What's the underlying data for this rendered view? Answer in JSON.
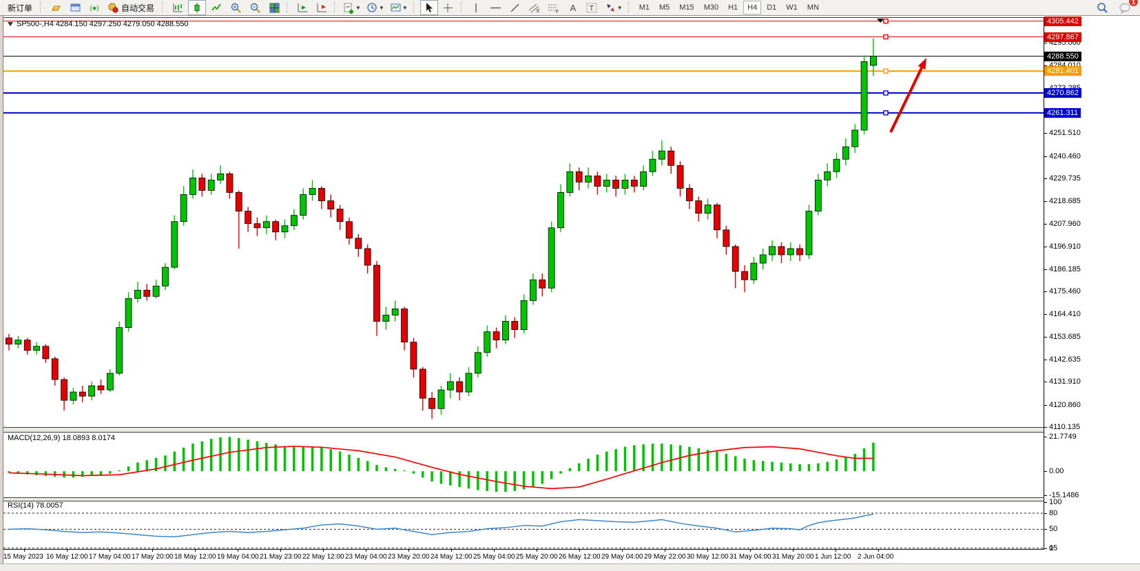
{
  "toolbar": {
    "new_order_label": "新订单",
    "auto_trading_label": "自动交易",
    "timeframes": [
      "M1",
      "M5",
      "M15",
      "M30",
      "H1",
      "H4",
      "D1",
      "W1",
      "MN"
    ],
    "active_timeframe": "H4",
    "notification_count": "1",
    "icons": [
      "gold-ingot-icon",
      "market-window-icon",
      "signal-icon",
      "auto-trading-icon",
      "bar-chart-icon",
      "candlestick-chart-icon",
      "line-chart-icon",
      "zoom-in-icon",
      "zoom-out-icon",
      "tile-windows-icon",
      "auto-scroll-icon",
      "chart-shift-icon",
      "indicators-icon",
      "period-icon",
      "template-icon",
      "cursor-icon",
      "crosshair-icon",
      "vertical-line-icon",
      "horizontal-line-icon",
      "trendline-icon",
      "equidistant-channel-icon",
      "fibonacci-icon",
      "text-icon",
      "text-label-icon",
      "arrows-icon",
      "search-icon",
      "chat-icon"
    ]
  },
  "chart_data": {
    "type": "candlestick",
    "symbol": "SP500-",
    "period": "H4",
    "title": "SP500-,H4  4284.150 4297.250 4279.050 4288.550",
    "current_bar": {
      "open": 4284.15,
      "high": 4297.25,
      "low": 4279.05,
      "close": 4288.55
    },
    "price_axis": {
      "top": 4306.33,
      "bottom": 4110.135,
      "ticks": [
        4295.06,
        4284.01,
        4273.285,
        4251.51,
        4240.46,
        4229.735,
        4218.685,
        4207.96,
        4196.91,
        4186.185,
        4175.46,
        4164.41,
        4153.685,
        4142.635,
        4131.91,
        4120.86,
        4110.135
      ]
    },
    "horizontal_lines": [
      {
        "price": 4305.442,
        "label": "4305.442",
        "color": "#e00000",
        "width": 1,
        "handle": true
      },
      {
        "price": 4297.867,
        "label": "4297.867",
        "color": "#e00000",
        "width": 1,
        "handle": true
      },
      {
        "price": 4288.55,
        "label": "4288.550",
        "color": "#000000",
        "width": 1,
        "handle": false
      },
      {
        "price": 4281.401,
        "label": "4281.401",
        "color": "#ff9900",
        "width": 2,
        "handle": true
      },
      {
        "price": 4270.862,
        "label": "4270.862",
        "color": "#0000d8",
        "width": 2,
        "handle": true
      },
      {
        "price": 4261.311,
        "label": "4261.311",
        "color": "#0000d8",
        "width": 2,
        "handle": true
      }
    ],
    "candles": [
      [
        4153,
        4155,
        4147,
        4150
      ],
      [
        4150,
        4154,
        4148,
        4152
      ],
      [
        4152,
        4153,
        4145,
        4147
      ],
      [
        4147,
        4151,
        4145,
        4149
      ],
      [
        4149,
        4150,
        4141,
        4143
      ],
      [
        4143,
        4144,
        4130,
        4133
      ],
      [
        4133,
        4134,
        4118,
        4123
      ],
      [
        4123,
        4129,
        4121,
        4127
      ],
      [
        4127,
        4130,
        4122,
        4125
      ],
      [
        4125,
        4132,
        4123,
        4130
      ],
      [
        4130,
        4133,
        4126,
        4128
      ],
      [
        4128,
        4138,
        4127,
        4136
      ],
      [
        4136,
        4161,
        4135,
        4158
      ],
      [
        4158,
        4175,
        4156,
        4172
      ],
      [
        4172,
        4180,
        4170,
        4176
      ],
      [
        4176,
        4179,
        4171,
        4173
      ],
      [
        4173,
        4181,
        4172,
        4178
      ],
      [
        4178,
        4189,
        4176,
        4187
      ],
      [
        4187,
        4212,
        4186,
        4209
      ],
      [
        4209,
        4226,
        4207,
        4222
      ],
      [
        4222,
        4234,
        4220,
        4230
      ],
      [
        4230,
        4232,
        4221,
        4224
      ],
      [
        4224,
        4232,
        4222,
        4229
      ],
      [
        4229,
        4236,
        4227,
        4232
      ],
      [
        4232,
        4233,
        4220,
        4223
      ],
      [
        4223,
        4224,
        4196,
        4214
      ],
      [
        4214,
        4216,
        4204,
        4208
      ],
      [
        4208,
        4211,
        4202,
        4206
      ],
      [
        4206,
        4212,
        4203,
        4209
      ],
      [
        4209,
        4210,
        4200,
        4204
      ],
      [
        4204,
        4210,
        4201,
        4207
      ],
      [
        4207,
        4215,
        4205,
        4212
      ],
      [
        4212,
        4225,
        4210,
        4222
      ],
      [
        4222,
        4229,
        4219,
        4225
      ],
      [
        4225,
        4226,
        4215,
        4219
      ],
      [
        4219,
        4222,
        4211,
        4215
      ],
      [
        4215,
        4217,
        4205,
        4209
      ],
      [
        4209,
        4211,
        4198,
        4201
      ],
      [
        4201,
        4203,
        4192,
        4196
      ],
      [
        4196,
        4198,
        4184,
        4188
      ],
      [
        4188,
        4190,
        4154,
        4161
      ],
      [
        4161,
        4168,
        4157,
        4164
      ],
      [
        4164,
        4171,
        4161,
        4167
      ],
      [
        4167,
        4168,
        4147,
        4151
      ],
      [
        4151,
        4153,
        4134,
        4138
      ],
      [
        4138,
        4139,
        4118,
        4124
      ],
      [
        4124,
        4127,
        4114,
        4119
      ],
      [
        4119,
        4130,
        4116,
        4128
      ],
      [
        4128,
        4136,
        4124,
        4132
      ],
      [
        4132,
        4134,
        4123,
        4127
      ],
      [
        4127,
        4139,
        4125,
        4136
      ],
      [
        4136,
        4149,
        4134,
        4146
      ],
      [
        4146,
        4159,
        4144,
        4156
      ],
      [
        4156,
        4158,
        4148,
        4152
      ],
      [
        4152,
        4164,
        4150,
        4161
      ],
      [
        4161,
        4163,
        4153,
        4157
      ],
      [
        4157,
        4174,
        4155,
        4171
      ],
      [
        4171,
        4184,
        4169,
        4181
      ],
      [
        4181,
        4184,
        4173,
        4177
      ],
      [
        4177,
        4209,
        4175,
        4206
      ],
      [
        4206,
        4227,
        4204,
        4223
      ],
      [
        4223,
        4237,
        4221,
        4233
      ],
      [
        4233,
        4235,
        4224,
        4228
      ],
      [
        4228,
        4235,
        4225,
        4231
      ],
      [
        4231,
        4233,
        4222,
        4226
      ],
      [
        4226,
        4232,
        4223,
        4229
      ],
      [
        4229,
        4231,
        4221,
        4225
      ],
      [
        4225,
        4232,
        4222,
        4229
      ],
      [
        4229,
        4231,
        4223,
        4226
      ],
      [
        4226,
        4236,
        4224,
        4233
      ],
      [
        4233,
        4243,
        4231,
        4239
      ],
      [
        4239,
        4248,
        4236,
        4243
      ],
      [
        4243,
        4245,
        4232,
        4236
      ],
      [
        4236,
        4238,
        4221,
        4225
      ],
      [
        4225,
        4227,
        4215,
        4219
      ],
      [
        4219,
        4221,
        4209,
        4213
      ],
      [
        4213,
        4220,
        4210,
        4217
      ],
      [
        4217,
        4218,
        4201,
        4205
      ],
      [
        4205,
        4207,
        4193,
        4197
      ],
      [
        4197,
        4198,
        4177,
        4185
      ],
      [
        4185,
        4188,
        4175,
        4181
      ],
      [
        4181,
        4192,
        4179,
        4189
      ],
      [
        4189,
        4196,
        4186,
        4193
      ],
      [
        4193,
        4200,
        4190,
        4197
      ],
      [
        4197,
        4199,
        4189,
        4193
      ],
      [
        4193,
        4199,
        4190,
        4196
      ],
      [
        4196,
        4198,
        4190,
        4193
      ],
      [
        4193,
        4217,
        4191,
        4214
      ],
      [
        4214,
        4232,
        4212,
        4229
      ],
      [
        4229,
        4237,
        4226,
        4233
      ],
      [
        4233,
        4242,
        4230,
        4239
      ],
      [
        4239,
        4249,
        4236,
        4245
      ],
      [
        4245,
        4256,
        4242,
        4253
      ],
      [
        4253,
        4289,
        4251,
        4286
      ],
      [
        4284.15,
        4297.25,
        4279.05,
        4288.55
      ]
    ],
    "colors": {
      "bull": "#00c400",
      "bear": "#e80000",
      "outline": "#000000",
      "macd_bar": "#00c400",
      "macd_signal": "#ff0000",
      "rsi_line": "#3d85c8",
      "arrow": "#e00000"
    },
    "x_axis": {
      "labels": [
        "15 May 2023",
        "16 May 12:00",
        "17 May 04:00",
        "17 May 20:00",
        "18 May 12:00",
        "19 May 04:00",
        "21 May 23:00",
        "22 May 12:00",
        "23 May 04:00",
        "23 May 20:00",
        "24 May 12:00",
        "25 May 04:00",
        "25 May 20:00",
        "26 May 12:00",
        "29 May 04:00",
        "29 May 22:00",
        "30 May 12:00",
        "31 May 04:00",
        "31 May 20:00",
        "1 Jun 12:00",
        "2 Jun 04:00"
      ]
    },
    "macd": {
      "label": "MACD(12,26,9) 18.0893 8.0174",
      "value": "18.0893",
      "signal_value": "8.0174",
      "range": [
        -16.5,
        24.5
      ],
      "ticks": [
        {
          "label": "21.7749",
          "v": 21.7749
        },
        {
          "label": "0.00",
          "v": 0
        },
        {
          "label": "-15.1486",
          "v": -15.1486
        }
      ],
      "histogram": [
        -1,
        -1.5,
        -2,
        -2.5,
        -3,
        -3.5,
        -4,
        -4,
        -3.5,
        -3,
        -2.5,
        -1.5,
        0.5,
        3,
        5.5,
        7,
        8.5,
        10,
        12.5,
        15,
        17.5,
        19,
        20.5,
        21.5,
        21.77,
        21,
        20,
        19,
        18,
        17,
        16,
        15.5,
        15.5,
        15.5,
        15,
        14,
        12.5,
        10.5,
        8.5,
        6.5,
        4,
        2.5,
        1.5,
        0.5,
        -1.5,
        -4,
        -6.5,
        -8,
        -9,
        -10,
        -11,
        -12,
        -12.5,
        -13,
        -13,
        -12.5,
        -11.5,
        -10,
        -8,
        -5,
        -1.5,
        2,
        5,
        8,
        10.5,
        12.5,
        14,
        15.5,
        16.5,
        17,
        17.5,
        17.5,
        17,
        16.5,
        15.5,
        14.5,
        13.5,
        12.5,
        11,
        9.5,
        8,
        7,
        6.5,
        6,
        5.5,
        5,
        4.5,
        4.5,
        5,
        6,
        7.5,
        9,
        11,
        14.5,
        18.09
      ],
      "signal_points": [
        [
          0,
          -1
        ],
        [
          4,
          -1.8
        ],
        [
          8,
          -2.8
        ],
        [
          12,
          -2.2
        ],
        [
          16,
          1.5
        ],
        [
          20,
          7
        ],
        [
          24,
          12
        ],
        [
          28,
          15
        ],
        [
          31,
          15.8
        ],
        [
          34,
          15.2
        ],
        [
          38,
          13
        ],
        [
          42,
          9
        ],
        [
          46,
          2.5
        ],
        [
          49,
          -2
        ],
        [
          53,
          -6.5
        ],
        [
          56,
          -9.5
        ],
        [
          59,
          -11
        ],
        [
          62,
          -10
        ],
        [
          65,
          -5
        ],
        [
          67,
          -1.5
        ],
        [
          69,
          2
        ],
        [
          71,
          5.5
        ],
        [
          74,
          10
        ],
        [
          77,
          13
        ],
        [
          80,
          15
        ],
        [
          83,
          15.5
        ],
        [
          86,
          14.2
        ],
        [
          88,
          12
        ],
        [
          90,
          9.8
        ],
        [
          92,
          8.2
        ],
        [
          94,
          8.2
        ]
      ]
    },
    "rsi": {
      "label": "RSI(14) 78.0057",
      "value": "78.0057",
      "levels": [
        80,
        50,
        15
      ],
      "ticks": [
        {
          "label": "100",
          "v": 100
        },
        {
          "label": "80",
          "v": 80
        },
        {
          "label": "50",
          "v": 50
        },
        {
          "label": "15",
          "v": 15
        },
        {
          "label": "0",
          "v": 0
        }
      ],
      "points": [
        [
          0,
          50
        ],
        [
          2,
          51
        ],
        [
          4,
          49
        ],
        [
          6,
          46
        ],
        [
          8,
          44
        ],
        [
          10,
          45
        ],
        [
          12,
          43
        ],
        [
          14,
          40
        ],
        [
          16,
          37
        ],
        [
          18,
          36
        ],
        [
          20,
          40
        ],
        [
          22,
          44
        ],
        [
          24,
          46
        ],
        [
          26,
          44
        ],
        [
          28,
          46
        ],
        [
          30,
          49
        ],
        [
          32,
          52
        ],
        [
          34,
          58
        ],
        [
          36,
          60
        ],
        [
          38,
          56
        ],
        [
          40,
          50
        ],
        [
          42,
          52
        ],
        [
          44,
          46
        ],
        [
          46,
          40
        ],
        [
          48,
          44
        ],
        [
          50,
          46
        ],
        [
          52,
          51
        ],
        [
          54,
          53
        ],
        [
          56,
          57
        ],
        [
          58,
          56
        ],
        [
          60,
          64
        ],
        [
          62,
          68
        ],
        [
          64,
          66
        ],
        [
          66,
          64
        ],
        [
          68,
          63
        ],
        [
          70,
          66
        ],
        [
          71,
          68
        ],
        [
          73,
          61
        ],
        [
          75,
          56
        ],
        [
          77,
          52
        ],
        [
          79,
          45
        ],
        [
          81,
          48
        ],
        [
          83,
          52
        ],
        [
          85,
          51
        ],
        [
          86,
          49
        ],
        [
          87,
          57
        ],
        [
          88,
          62
        ],
        [
          89,
          65
        ],
        [
          90,
          67
        ],
        [
          91,
          69
        ],
        [
          92,
          71
        ],
        [
          93,
          75
        ],
        [
          94,
          78
        ]
      ]
    },
    "annotation_arrow": {
      "from": [
        1288,
        166
      ],
      "to": [
        1340,
        58
      ],
      "width": 4
    }
  }
}
